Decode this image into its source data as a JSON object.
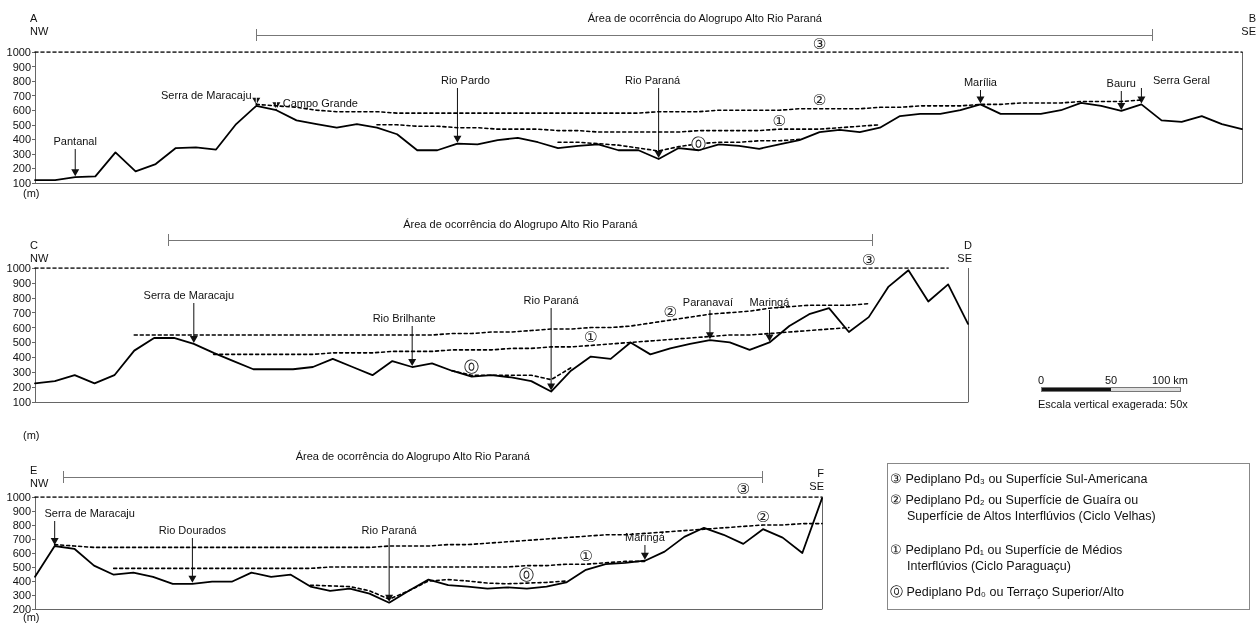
{
  "chart_data": [
    {
      "type": "line",
      "ylabel": "(m)",
      "ylim": [
        100,
        1000
      ],
      "yticks": [
        100,
        200,
        300,
        400,
        500,
        600,
        700,
        800,
        900,
        1000
      ],
      "tick_labels": "y",
      "marker": "none",
      "categories": [
        null,
        null,
        null,
        null,
        null,
        null,
        null,
        null,
        null,
        null,
        null,
        null,
        null,
        null,
        null,
        null,
        null,
        null,
        null,
        null,
        null,
        null,
        null,
        null,
        null,
        null,
        null,
        null,
        null,
        null,
        null,
        null,
        null,
        null,
        null,
        null,
        null,
        null,
        null,
        null,
        null,
        null,
        null,
        null,
        null,
        null,
        null,
        null,
        null,
        null,
        null,
        null,
        null,
        null,
        null,
        null,
        null,
        null,
        null,
        null,
        null
      ],
      "series": [
        {
          "color": "#000000",
          "line_style": "solid",
          "values": [
            120,
            120,
            140,
            145,
            310,
            180,
            230,
            340,
            345,
            330,
            505,
            630,
            600,
            530,
            505,
            480,
            505,
            480,
            435,
            325,
            325,
            370,
            365,
            395,
            410,
            380,
            340,
            355,
            365,
            325,
            325,
            265,
            340,
            325,
            365,
            355,
            335,
            365,
            395,
            450,
            465,
            450,
            480,
            560,
            575,
            575,
            600,
            640,
            575,
            575,
            575,
            600,
            650,
            630,
            595,
            640,
            530,
            520,
            560,
            505,
            470
          ]
        },
        {
          "name": "③",
          "color": "#000000",
          "line_style": "dashed",
          "values": [
            1000,
            1000,
            1000,
            1000,
            1000,
            1000,
            1000,
            1000,
            1000,
            1000,
            1000,
            1000,
            1000,
            1000,
            1000,
            1000,
            1000,
            1000,
            1000,
            1000,
            1000,
            1000,
            1000,
            1000,
            1000,
            1000,
            1000,
            1000,
            1000,
            1000,
            1000,
            1000,
            1000,
            1000,
            1000,
            1000,
            1000,
            1000,
            1000,
            1000,
            1000,
            1000,
            1000,
            1000,
            1000,
            1000,
            1000,
            1000,
            1000,
            1000,
            1000,
            1000,
            1000,
            1000,
            1000,
            1000,
            1000,
            1000,
            1000,
            1000,
            1000
          ]
        },
        {
          "name": "②",
          "color": "#000000",
          "line_style": "dashed",
          "values": [
            null,
            null,
            null,
            null,
            null,
            null,
            null,
            null,
            null,
            null,
            null,
            640,
            630,
            620,
            600,
            590,
            590,
            590,
            580,
            580,
            580,
            580,
            580,
            580,
            580,
            580,
            580,
            580,
            580,
            580,
            580,
            590,
            590,
            590,
            600,
            600,
            600,
            600,
            610,
            610,
            610,
            610,
            620,
            620,
            630,
            630,
            630,
            640,
            640,
            650,
            650,
            650,
            660,
            660,
            660,
            670,
            null,
            null,
            null,
            null,
            null
          ]
        },
        {
          "name": "①",
          "color": "#000000",
          "line_style": "dashed",
          "values": [
            null,
            null,
            null,
            null,
            null,
            null,
            null,
            null,
            null,
            null,
            null,
            null,
            null,
            null,
            null,
            null,
            null,
            500,
            500,
            490,
            490,
            480,
            480,
            470,
            470,
            470,
            460,
            460,
            450,
            450,
            450,
            450,
            450,
            460,
            460,
            460,
            460,
            470,
            470,
            470,
            480,
            490,
            500,
            null,
            null,
            null,
            null,
            null,
            null,
            null,
            null,
            null,
            null,
            null,
            null,
            null,
            null,
            null,
            null,
            null,
            null
          ]
        },
        {
          "name": "⓪",
          "color": "#000000",
          "line_style": "dashed",
          "values": [
            null,
            null,
            null,
            null,
            null,
            null,
            null,
            null,
            null,
            null,
            null,
            null,
            null,
            null,
            null,
            null,
            null,
            null,
            null,
            null,
            null,
            null,
            null,
            null,
            null,
            null,
            380,
            380,
            370,
            360,
            340,
            320,
            350,
            370,
            380,
            380,
            390,
            390,
            400,
            null,
            null,
            null,
            null,
            null,
            null,
            null,
            null,
            null,
            null,
            null,
            null,
            null,
            null,
            null,
            null,
            null,
            null,
            null,
            null,
            null,
            null
          ]
        }
      ],
      "annotations": [
        "A",
        "NW",
        "B",
        "SE",
        "Área de ocorrência do Alogrupo Alto Rio Paraná",
        "Pantanal",
        "Serra de Maracaju",
        "Campo Grande",
        "Rio Pardo",
        "Rio Paraná",
        "Marília",
        "Bauru",
        "Serra Geral"
      ]
    },
    {
      "type": "line",
      "ylabel": "(m)",
      "ylim": [
        100,
        1000
      ],
      "yticks": [
        100,
        200,
        300,
        400,
        500,
        600,
        700,
        800,
        900,
        1000
      ],
      "tick_labels": "y",
      "marker": "none",
      "categories": [
        null,
        null,
        null,
        null,
        null,
        null,
        null,
        null,
        null,
        null,
        null,
        null,
        null,
        null,
        null,
        null,
        null,
        null,
        null,
        null,
        null,
        null,
        null,
        null,
        null,
        null,
        null,
        null,
        null,
        null,
        null,
        null,
        null,
        null,
        null,
        null,
        null,
        null,
        null,
        null,
        null,
        null,
        null,
        null,
        null,
        null,
        null,
        null
      ],
      "series": [
        {
          "color": "#000000",
          "line_style": "solid",
          "values": [
            225,
            240,
            280,
            225,
            280,
            445,
            530,
            530,
            490,
            430,
            375,
            320,
            320,
            320,
            335,
            390,
            335,
            280,
            375,
            335,
            360,
            310,
            270,
            280,
            265,
            240,
            170,
            310,
            405,
            390,
            500,
            420,
            460,
            490,
            515,
            500,
            450,
            500,
            610,
            690,
            730,
            570,
            670,
            875,
            985,
            775,
            890,
            625
          ]
        },
        {
          "name": "③",
          "color": "#000000",
          "line_style": "dashed",
          "values": [
            1000,
            1000,
            1000,
            1000,
            1000,
            1000,
            1000,
            1000,
            1000,
            1000,
            1000,
            1000,
            1000,
            1000,
            1000,
            1000,
            1000,
            1000,
            1000,
            1000,
            1000,
            1000,
            1000,
            1000,
            1000,
            1000,
            1000,
            1000,
            1000,
            1000,
            1000,
            1000,
            1000,
            1000,
            1000,
            1000,
            1000,
            1000,
            1000,
            1000,
            1000,
            1000,
            1000,
            1000,
            1000,
            1000,
            1000,
            null
          ]
        },
        {
          "name": "②",
          "color": "#000000",
          "line_style": "dashed",
          "values": [
            null,
            null,
            null,
            null,
            null,
            550,
            550,
            550,
            550,
            550,
            550,
            550,
            550,
            550,
            550,
            550,
            550,
            550,
            550,
            550,
            550,
            560,
            560,
            570,
            570,
            580,
            590,
            590,
            600,
            600,
            610,
            630,
            650,
            670,
            690,
            700,
            710,
            730,
            740,
            750,
            750,
            750,
            760,
            null,
            null,
            null,
            null,
            null
          ]
        },
        {
          "name": "①",
          "color": "#000000",
          "line_style": "dashed",
          "values": [
            null,
            null,
            null,
            null,
            null,
            null,
            null,
            null,
            null,
            420,
            420,
            420,
            420,
            420,
            420,
            430,
            430,
            430,
            440,
            440,
            440,
            450,
            450,
            450,
            460,
            460,
            470,
            470,
            480,
            490,
            500,
            510,
            520,
            530,
            540,
            550,
            550,
            560,
            570,
            580,
            590,
            600,
            null,
            null,
            null,
            null,
            null,
            null
          ]
        },
        {
          "name": "⓪",
          "color": "#000000",
          "line_style": "dashed",
          "values": [
            null,
            null,
            null,
            null,
            null,
            null,
            null,
            null,
            null,
            null,
            null,
            null,
            null,
            null,
            null,
            null,
            null,
            null,
            null,
            null,
            null,
            310,
            280,
            280,
            280,
            280,
            250,
            330,
            null,
            null,
            null,
            null,
            null,
            null,
            null,
            null,
            null,
            null,
            null,
            null,
            null,
            null,
            null,
            null,
            null,
            null,
            null,
            null
          ]
        }
      ],
      "annotations": [
        "C",
        "NW",
        "D",
        "SE",
        "Área de ocorrência do Alogrupo Alto Rio Paraná",
        "Serra de Maracaju",
        "Rio Brilhante",
        "Rio Paraná",
        "Paranavaí",
        "Maringá",
        "0",
        "50",
        "100 km",
        "Escala vertical exagerada: 50x"
      ]
    },
    {
      "type": "line",
      "ylabel": "(m)",
      "ylim": [
        200,
        1000
      ],
      "yticks": [
        200,
        300,
        400,
        500,
        600,
        700,
        800,
        900,
        1000
      ],
      "tick_labels": "y",
      "marker": "none",
      "categories": [
        null,
        null,
        null,
        null,
        null,
        null,
        null,
        null,
        null,
        null,
        null,
        null,
        null,
        null,
        null,
        null,
        null,
        null,
        null,
        null,
        null,
        null,
        null,
        null,
        null,
        null,
        null,
        null,
        null,
        null,
        null,
        null,
        null,
        null,
        null,
        null,
        null,
        null,
        null,
        null,
        null
      ],
      "series": [
        {
          "color": "#000000",
          "line_style": "solid",
          "values": [
            430,
            650,
            630,
            510,
            445,
            460,
            430,
            380,
            380,
            395,
            395,
            460,
            430,
            445,
            360,
            330,
            345,
            310,
            245,
            330,
            410,
            370,
            360,
            345,
            355,
            345,
            360,
            390,
            480,
            520,
            530,
            545,
            610,
            715,
            780,
            730,
            665,
            770,
            710,
            600,
            990
          ]
        },
        {
          "name": "③",
          "color": "#000000",
          "line_style": "dashed",
          "values": [
            1000,
            1000,
            1000,
            1000,
            1000,
            1000,
            1000,
            1000,
            1000,
            1000,
            1000,
            1000,
            1000,
            1000,
            1000,
            1000,
            1000,
            1000,
            1000,
            1000,
            1000,
            1000,
            1000,
            1000,
            1000,
            1000,
            1000,
            1000,
            1000,
            1000,
            1000,
            1000,
            1000,
            1000,
            1000,
            1000,
            1000,
            1000,
            1000,
            1000,
            1000
          ]
        },
        {
          "name": "②",
          "color": "#000000",
          "line_style": "dashed",
          "values": [
            null,
            660,
            650,
            640,
            640,
            640,
            640,
            640,
            640,
            640,
            640,
            640,
            640,
            640,
            640,
            640,
            640,
            640,
            650,
            650,
            650,
            660,
            660,
            670,
            680,
            690,
            700,
            710,
            720,
            730,
            730,
            740,
            750,
            760,
            770,
            780,
            790,
            800,
            800,
            810,
            810
          ]
        },
        {
          "name": "①",
          "color": "#000000",
          "line_style": "dashed",
          "values": [
            null,
            null,
            null,
            null,
            490,
            490,
            490,
            490,
            490,
            490,
            490,
            490,
            490,
            490,
            490,
            500,
            500,
            500,
            500,
            500,
            500,
            500,
            500,
            500,
            500,
            510,
            510,
            520,
            520,
            530,
            540,
            540,
            null,
            null,
            null,
            null,
            null,
            null,
            null,
            null,
            null
          ]
        },
        {
          "name": "⓪",
          "color": "#000000",
          "line_style": "dashed",
          "values": [
            null,
            null,
            null,
            null,
            null,
            null,
            null,
            null,
            null,
            null,
            null,
            null,
            null,
            null,
            370,
            365,
            360,
            330,
            270,
            330,
            400,
            410,
            400,
            385,
            380,
            385,
            390,
            400,
            null,
            null,
            null,
            null,
            null,
            null,
            null,
            null,
            null,
            null,
            null,
            null,
            null
          ]
        }
      ],
      "annotations": [
        "E",
        "NW",
        "F",
        "SE",
        "Área de ocorrência do Alogrupo Alto Rio Paraná",
        "Serra de Maracaju",
        "Rio Dourados",
        "Rio Paraná",
        "Maringá",
        "③ Pediplano Pd₃ ou Superfície Sul-Americana",
        "② Pediplano Pd₂ ou Superfície de Guaíra ou Superfície de Altos Interflúvios (Ciclo Velhas)",
        "① Pediplano Pd₁ ou Superfície de Médios Interflúvios (Ciclo Paraguaçu)",
        "⓪ Pediplano Pd₀ ou Terraço Superior/Alto"
      ]
    }
  ]
}
